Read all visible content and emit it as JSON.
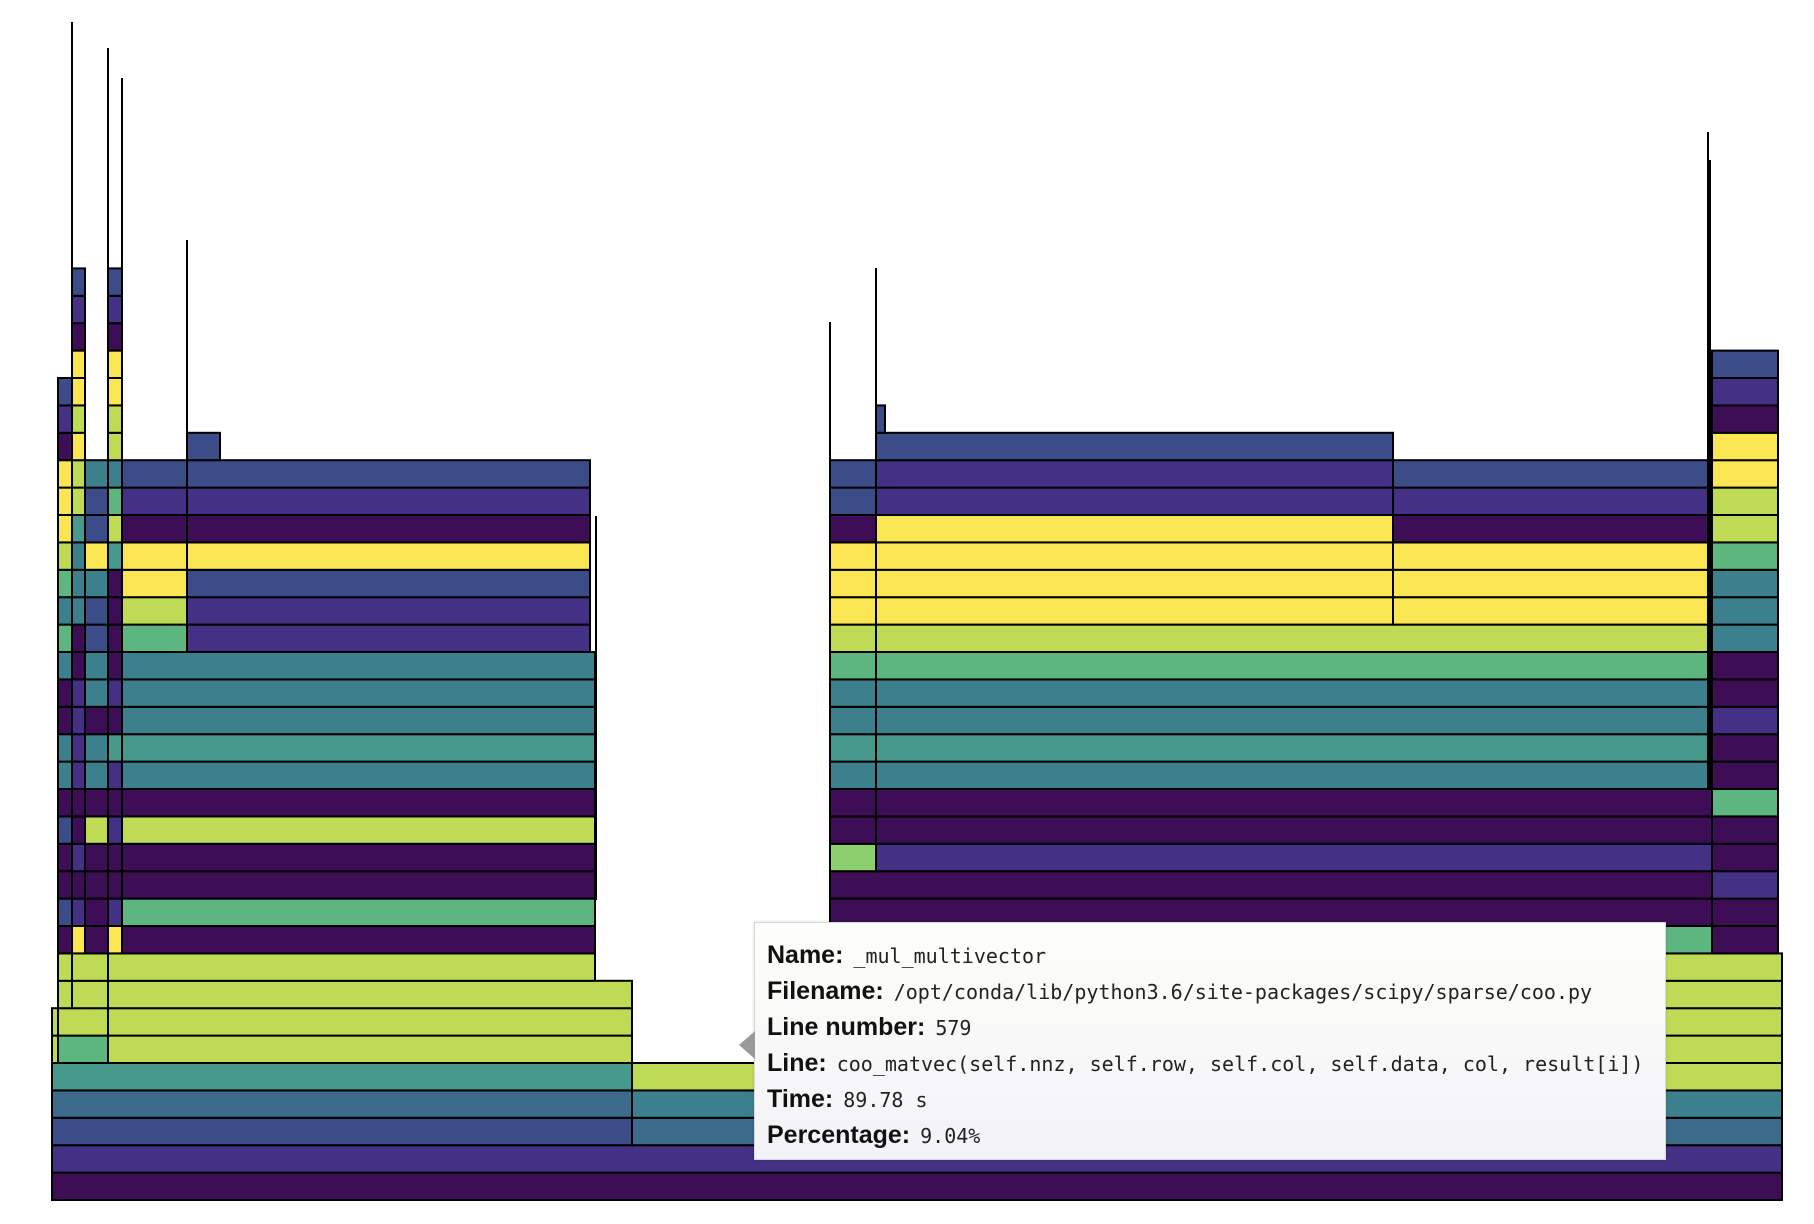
{
  "chart_data": {
    "type": "flame",
    "title": "",
    "xlabel": "",
    "ylabel": "",
    "colors": {
      "purple_dark": "#3d0d55",
      "purple": "#443085",
      "blue": "#3c4c88",
      "teal_blue": "#3c6a8a",
      "teal": "#3d808d",
      "teal_green": "#47998b",
      "green": "#5db57f",
      "lime": "#bfdb55",
      "light_green": "#8ccf6e",
      "yellow": "#fae552"
    }
  },
  "tooltip": {
    "name_label": "Name:",
    "name_value": "_mul_multivector",
    "filename_label": "Filename:",
    "filename_value": "/opt/conda/lib/python3.6/site-packages/scipy/sparse/coo.py",
    "line_number_label": "Line number:",
    "line_number_value": "579",
    "line_label": "Line:",
    "line_value": "coo_matvec(self.nnz, self.row, self.col, self.data, col, result[i])",
    "time_label": "Time:",
    "time_value": "89.78 s",
    "percentage_label": "Percentage:",
    "percentage_value": "9.04%"
  }
}
